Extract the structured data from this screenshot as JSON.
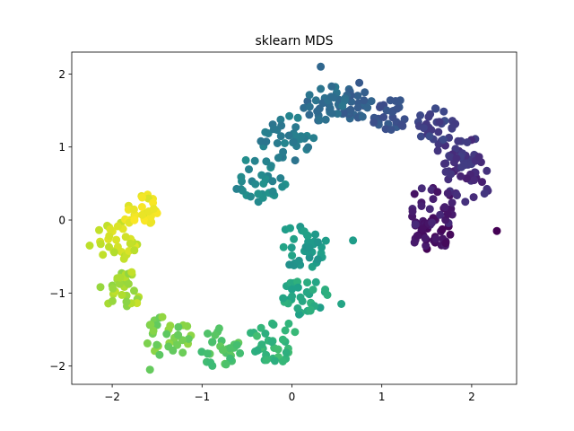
{
  "chart_data": {
    "type": "scatter",
    "title": "sklearn MDS",
    "xlabel": "",
    "ylabel": "",
    "xlim": [
      -2.45,
      2.5
    ],
    "ylim": [
      -2.25,
      2.3
    ],
    "grid": false,
    "x_ticks": [
      -2,
      -1,
      0,
      1,
      2
    ],
    "y_ticks": [
      -2,
      -1,
      0,
      1,
      2
    ],
    "x_tick_labels": [
      "−2",
      "−1",
      "0",
      "1",
      "2"
    ],
    "y_tick_labels": [
      "−2",
      "−1",
      "0",
      "1",
      "2"
    ],
    "colormap": "viridis",
    "colormap_stops": [
      "#440154",
      "#482878",
      "#3e4989",
      "#31688e",
      "#26828e",
      "#1f9e89",
      "#35b779",
      "#6ece58",
      "#b5de2b",
      "#fde725"
    ],
    "point_color": "colormap position along the curve, from dark purple (right end) to yellow (left end)",
    "segments": [
      {
        "cx": 1.55,
        "cy": -0.2,
        "r": 0.22,
        "t0": 0.0,
        "t1": 0.08,
        "n": 34
      },
      {
        "cx": 1.55,
        "cy": 0.15,
        "r": 0.28,
        "t0": 0.04,
        "t1": 0.12,
        "n": 30
      },
      {
        "cx": 1.95,
        "cy": 0.55,
        "r": 0.28,
        "t0": 0.08,
        "t1": 0.16,
        "n": 32
      },
      {
        "cx": 1.85,
        "cy": 0.95,
        "r": 0.25,
        "t0": 0.12,
        "t1": 0.2,
        "n": 30
      },
      {
        "cx": 1.6,
        "cy": 1.3,
        "r": 0.22,
        "t0": 0.16,
        "t1": 0.24,
        "n": 28
      },
      {
        "cx": 1.1,
        "cy": 1.45,
        "r": 0.22,
        "t0": 0.22,
        "t1": 0.3,
        "n": 28
      },
      {
        "cx": 0.7,
        "cy": 1.6,
        "r": 0.2,
        "t0": 0.28,
        "t1": 0.34,
        "n": 30
      },
      {
        "cx": 0.35,
        "cy": 1.6,
        "r": 0.25,
        "t0": 0.32,
        "t1": 0.4,
        "n": 32
      },
      {
        "cx": -0.05,
        "cy": 1.1,
        "r": 0.3,
        "t0": 0.38,
        "t1": 0.46,
        "n": 34
      },
      {
        "cx": -0.35,
        "cy": 0.55,
        "r": 0.3,
        "t0": 0.44,
        "t1": 0.52,
        "n": 32
      },
      {
        "cx": 0.1,
        "cy": -0.35,
        "r": 0.3,
        "t0": 0.5,
        "t1": 0.58,
        "n": 36
      },
      {
        "cx": 0.15,
        "cy": -1.05,
        "r": 0.25,
        "t0": 0.56,
        "t1": 0.64,
        "n": 34
      },
      {
        "cx": -0.2,
        "cy": -1.65,
        "r": 0.28,
        "t0": 0.62,
        "t1": 0.7,
        "n": 34
      },
      {
        "cx": -0.8,
        "cy": -1.75,
        "r": 0.25,
        "t0": 0.68,
        "t1": 0.76,
        "n": 30
      },
      {
        "cx": -1.4,
        "cy": -1.6,
        "r": 0.28,
        "t0": 0.74,
        "t1": 0.84,
        "n": 32
      },
      {
        "cx": -1.9,
        "cy": -0.95,
        "r": 0.25,
        "t0": 0.82,
        "t1": 0.92,
        "n": 30
      },
      {
        "cx": -1.95,
        "cy": -0.3,
        "r": 0.25,
        "t0": 0.88,
        "t1": 0.96,
        "n": 30
      },
      {
        "cx": -1.7,
        "cy": 0.15,
        "r": 0.22,
        "t0": 0.94,
        "t1": 1.0,
        "n": 30
      }
    ],
    "points": [
      {
        "x": 2.28,
        "y": -0.15,
        "t": 0.0
      },
      {
        "x": 0.68,
        "y": -0.28,
        "t": 0.55
      },
      {
        "x": 0.32,
        "y": 2.1,
        "t": 0.33
      },
      {
        "x": -1.58,
        "y": -2.05,
        "t": 0.76
      },
      {
        "x": -2.25,
        "y": -0.35,
        "t": 0.9
      },
      {
        "x": 0.55,
        "y": -1.15,
        "t": 0.58
      },
      {
        "x": 0.75,
        "y": 1.88,
        "t": 0.28
      }
    ]
  }
}
